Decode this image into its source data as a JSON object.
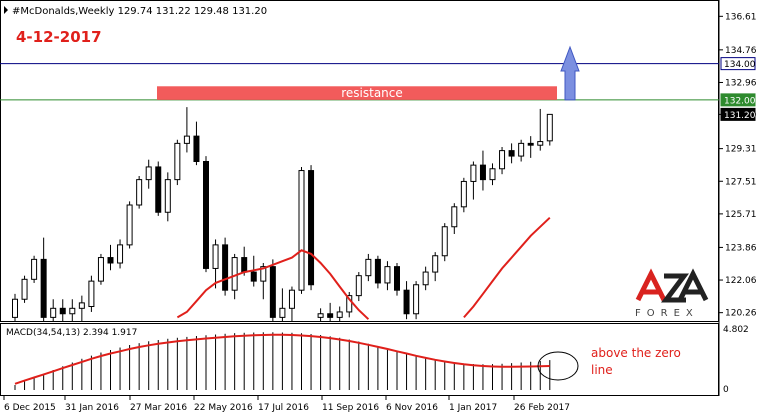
{
  "header": {
    "symbol_line": "#McDonalds,Weekly  129.74 131.22 129.48 131.20",
    "date_label": "4-12-2017"
  },
  "colors": {
    "date_label": "#e0201b",
    "resistance_box": "#f25b5b",
    "arrow": "#7b8fe0",
    "ma_line": "#e0201b",
    "line_134": "#000080",
    "line_132": "#2e8b2e",
    "candle_bull": "#000000",
    "candle_bear": "#000000"
  },
  "chart_data": [
    {
      "type": "candlestick",
      "title": "#McDonalds,Weekly",
      "ohlc_current": {
        "open": 129.74,
        "high": 131.22,
        "low": 129.48,
        "close": 131.2
      },
      "ylim": [
        119.8,
        137.4
      ],
      "y_ticks": [
        136.61,
        134.76,
        132.96,
        131.2,
        129.31,
        127.51,
        125.71,
        123.86,
        122.06,
        120.26
      ],
      "x_ticks": [
        "6 Dec 2015",
        "31 Jan 2016",
        "27 Mar 2016",
        "22 May 2016",
        "17 Jul 2016",
        "11 Sep 2016",
        "6 Nov 2016",
        "1 Jan 2017",
        "26 Feb 2017"
      ],
      "price_tags": [
        {
          "label": "134.00",
          "value": 134.0,
          "style": "navy"
        },
        {
          "label": "132.00",
          "value": 132.0,
          "style": "green"
        },
        {
          "label": "131.20",
          "value": 131.2,
          "style": "black"
        }
      ],
      "annotations": {
        "resistance_label": "resistance",
        "resistance_range": [
          132.0,
          132.75
        ],
        "arrow_direction": "up"
      },
      "series": [
        {
          "candles": [
            {
              "o": 120.0,
              "h": 121.3,
              "l": 119.8,
              "c": 121.0
            },
            {
              "o": 121.0,
              "h": 122.3,
              "l": 120.8,
              "c": 122.1
            },
            {
              "o": 122.1,
              "h": 123.4,
              "l": 121.9,
              "c": 123.2
            },
            {
              "o": 123.2,
              "h": 124.4,
              "l": 119.8,
              "c": 120.0
            },
            {
              "o": 120.0,
              "h": 121.0,
              "l": 119.8,
              "c": 120.5
            },
            {
              "o": 120.5,
              "h": 121.0,
              "l": 119.8,
              "c": 120.2
            },
            {
              "o": 120.2,
              "h": 121.0,
              "l": 119.8,
              "c": 120.5
            },
            {
              "o": 120.5,
              "h": 121.2,
              "l": 119.8,
              "c": 120.8
            },
            {
              "o": 120.6,
              "h": 122.3,
              "l": 120.3,
              "c": 122.0
            },
            {
              "o": 122.0,
              "h": 123.5,
              "l": 121.8,
              "c": 123.3
            },
            {
              "o": 123.3,
              "h": 124.0,
              "l": 122.6,
              "c": 123.0
            },
            {
              "o": 123.0,
              "h": 124.3,
              "l": 122.7,
              "c": 124.0
            },
            {
              "o": 124.0,
              "h": 126.4,
              "l": 123.8,
              "c": 126.2
            },
            {
              "o": 126.2,
              "h": 127.8,
              "l": 126.0,
              "c": 127.6
            },
            {
              "o": 127.6,
              "h": 128.7,
              "l": 127.1,
              "c": 128.3
            },
            {
              "o": 128.3,
              "h": 128.6,
              "l": 125.6,
              "c": 125.8
            },
            {
              "o": 125.8,
              "h": 128.0,
              "l": 125.3,
              "c": 127.6
            },
            {
              "o": 127.6,
              "h": 129.8,
              "l": 127.3,
              "c": 129.6
            },
            {
              "o": 129.6,
              "h": 131.6,
              "l": 129.1,
              "c": 130.0
            },
            {
              "o": 130.0,
              "h": 130.8,
              "l": 128.4,
              "c": 128.6
            },
            {
              "o": 128.6,
              "h": 128.9,
              "l": 122.5,
              "c": 122.7
            },
            {
              "o": 122.7,
              "h": 124.3,
              "l": 121.6,
              "c": 124.0
            },
            {
              "o": 124.0,
              "h": 124.4,
              "l": 121.2,
              "c": 121.5
            },
            {
              "o": 121.5,
              "h": 123.5,
              "l": 121.0,
              "c": 123.3
            },
            {
              "o": 123.3,
              "h": 123.9,
              "l": 122.3,
              "c": 122.5
            },
            {
              "o": 122.5,
              "h": 123.4,
              "l": 121.7,
              "c": 122.0
            },
            {
              "o": 122.0,
              "h": 123.0,
              "l": 121.0,
              "c": 122.8
            },
            {
              "o": 122.8,
              "h": 123.2,
              "l": 119.8,
              "c": 120.0
            },
            {
              "o": 120.0,
              "h": 121.6,
              "l": 119.8,
              "c": 120.5
            },
            {
              "o": 120.5,
              "h": 121.7,
              "l": 119.8,
              "c": 121.5
            },
            {
              "o": 121.5,
              "h": 128.3,
              "l": 121.3,
              "c": 128.1
            },
            {
              "o": 128.1,
              "h": 128.4,
              "l": 121.5,
              "c": 121.8
            },
            {
              "o": 120.0,
              "h": 120.5,
              "l": 119.8,
              "c": 120.2
            },
            {
              "o": 120.2,
              "h": 120.8,
              "l": 119.8,
              "c": 120.0
            },
            {
              "o": 120.0,
              "h": 120.6,
              "l": 119.8,
              "c": 120.3
            },
            {
              "o": 120.3,
              "h": 121.4,
              "l": 120.0,
              "c": 121.2
            },
            {
              "o": 121.2,
              "h": 122.5,
              "l": 120.9,
              "c": 122.3
            },
            {
              "o": 122.3,
              "h": 123.5,
              "l": 122.0,
              "c": 123.2
            },
            {
              "o": 123.2,
              "h": 123.4,
              "l": 121.6,
              "c": 121.9
            },
            {
              "o": 121.9,
              "h": 123.1,
              "l": 121.5,
              "c": 122.8
            },
            {
              "o": 122.8,
              "h": 123.0,
              "l": 121.2,
              "c": 121.5
            },
            {
              "o": 121.5,
              "h": 122.0,
              "l": 119.9,
              "c": 120.2
            },
            {
              "o": 120.2,
              "h": 122.0,
              "l": 119.9,
              "c": 121.8
            },
            {
              "o": 121.8,
              "h": 122.8,
              "l": 121.5,
              "c": 122.5
            },
            {
              "o": 122.5,
              "h": 123.6,
              "l": 122.0,
              "c": 123.4
            },
            {
              "o": 123.4,
              "h": 125.2,
              "l": 123.1,
              "c": 125.0
            },
            {
              "o": 125.0,
              "h": 126.3,
              "l": 124.6,
              "c": 126.1
            },
            {
              "o": 126.1,
              "h": 127.7,
              "l": 125.8,
              "c": 127.5
            },
            {
              "o": 127.5,
              "h": 128.6,
              "l": 126.5,
              "c": 128.4
            },
            {
              "o": 128.4,
              "h": 129.2,
              "l": 127.0,
              "c": 127.6
            },
            {
              "o": 127.6,
              "h": 128.5,
              "l": 127.3,
              "c": 128.2
            },
            {
              "o": 128.2,
              "h": 129.4,
              "l": 127.9,
              "c": 129.2
            },
            {
              "o": 129.2,
              "h": 129.6,
              "l": 128.5,
              "c": 128.9
            },
            {
              "o": 128.9,
              "h": 129.8,
              "l": 128.6,
              "c": 129.6
            },
            {
              "o": 129.6,
              "h": 130.0,
              "l": 128.8,
              "c": 129.5
            },
            {
              "o": 129.5,
              "h": 131.5,
              "l": 129.2,
              "c": 129.7
            },
            {
              "o": 129.74,
              "h": 131.22,
              "l": 129.48,
              "c": 131.2
            }
          ]
        },
        {
          "name": "MA",
          "values": [
            null,
            null,
            null,
            null,
            null,
            null,
            null,
            null,
            null,
            null,
            null,
            null,
            null,
            null,
            null,
            null,
            null,
            120.0,
            120.3,
            120.9,
            121.5,
            121.9,
            122.1,
            122.3,
            122.5,
            122.6,
            122.7,
            122.9,
            123.1,
            123.3,
            123.7,
            123.5,
            123.0,
            122.4,
            121.7,
            121.0,
            120.4,
            119.9,
            null,
            null,
            null,
            null,
            null,
            null,
            null,
            null,
            null,
            120.0,
            120.6,
            121.3,
            122.0,
            122.7,
            123.3,
            123.9,
            124.5,
            125.0,
            125.5
          ]
        }
      ]
    },
    {
      "type": "line",
      "title": "MACD(34,54,13) 2.394 1.917",
      "ylim": [
        0,
        4.802
      ],
      "y_ticks": [
        4.802,
        0
      ],
      "annotation": "above the zero line",
      "series": [
        {
          "name": "MACD",
          "kind": "histogram",
          "values": [
            0.4,
            0.7,
            1.0,
            1.3,
            1.6,
            1.9,
            2.2,
            2.5,
            2.75,
            3.0,
            3.2,
            3.4,
            3.6,
            3.75,
            3.9,
            4.0,
            4.1,
            4.18,
            4.25,
            4.32,
            4.38,
            4.44,
            4.5,
            4.55,
            4.58,
            4.6,
            4.62,
            4.62,
            4.6,
            4.58,
            4.54,
            4.48,
            4.4,
            4.3,
            4.18,
            4.04,
            3.88,
            3.7,
            3.5,
            3.3,
            3.1,
            2.9,
            2.7,
            2.52,
            2.38,
            2.26,
            2.18,
            2.12,
            2.08,
            2.06,
            2.07,
            2.1,
            2.15,
            2.2,
            2.26,
            2.32,
            2.394
          ]
        },
        {
          "name": "Signal",
          "kind": "line",
          "values": [
            0.5,
            0.75,
            1.0,
            1.25,
            1.5,
            1.75,
            2.0,
            2.25,
            2.5,
            2.72,
            2.92,
            3.1,
            3.28,
            3.44,
            3.58,
            3.7,
            3.8,
            3.9,
            3.98,
            4.05,
            4.12,
            4.18,
            4.24,
            4.3,
            4.34,
            4.38,
            4.4,
            4.42,
            4.42,
            4.4,
            4.36,
            4.31,
            4.24,
            4.15,
            4.04,
            3.92,
            3.78,
            3.62,
            3.45,
            3.28,
            3.1,
            2.92,
            2.74,
            2.57,
            2.42,
            2.28,
            2.16,
            2.06,
            1.98,
            1.92,
            1.88,
            1.86,
            1.86,
            1.87,
            1.88,
            1.9,
            1.917
          ]
        }
      ]
    }
  ],
  "logo": {
    "text": "AZA",
    "subtext": "FOREX"
  }
}
